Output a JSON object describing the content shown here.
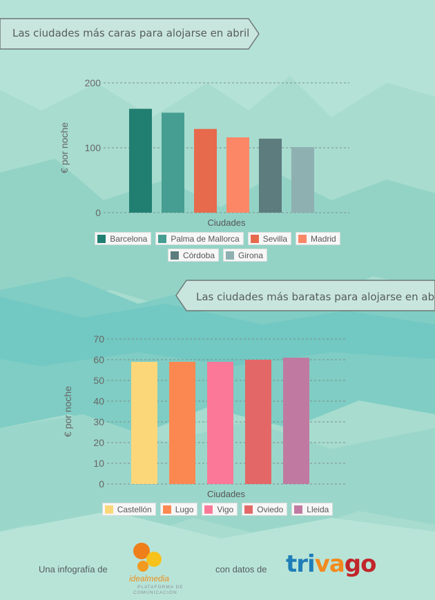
{
  "colors": {
    "bg_main": "#a9ddd0",
    "axis_text": "#666666",
    "banner_text": "#555c5c"
  },
  "charts": [
    {
      "banner": "Las ciudades más caras para alojarse en abril",
      "chart_data": {
        "type": "bar",
        "categories": [
          "Barcelona",
          "Palma de Mallorca",
          "Sevilla",
          "Madrid",
          "Córdoba",
          "Girona"
        ],
        "values": [
          160,
          154,
          129,
          116,
          114,
          101
        ],
        "colors": [
          "#217f72",
          "#459e91",
          "#e76a4c",
          "#fb8767",
          "#5c7c7e",
          "#8fb0b1"
        ],
        "xlabel": "Ciudades",
        "ylabel": "€ por noche",
        "ylim": [
          0,
          200
        ],
        "yticks": [
          0,
          100,
          200
        ],
        "grid": true,
        "legend": "bottom"
      }
    },
    {
      "banner": "Las ciudades más baratas para alojarse en abril",
      "chart_data": {
        "type": "bar",
        "categories": [
          "Castellón",
          "Lugo",
          "Vigo",
          "Oviedo",
          "Lleida"
        ],
        "values": [
          59,
          59,
          59,
          60,
          61
        ],
        "colors": [
          "#fbd77a",
          "#fc8851",
          "#fc7898",
          "#e36767",
          "#c07aa1"
        ],
        "xlabel": "Ciudades",
        "ylabel": "€ por noche",
        "ylim": [
          0,
          70
        ],
        "yticks": [
          0,
          10,
          20,
          30,
          40,
          50,
          60,
          70
        ],
        "grid": true,
        "legend": "bottom"
      }
    }
  ],
  "footer": {
    "left_text": "Una infografía de",
    "brand1": {
      "name": "idealmedia",
      "tagline1": "PLATAFORMA DE",
      "tagline2": "COMUNICACIÓN"
    },
    "mid_text": "con datos de",
    "brand2": {
      "name_part1": "tri",
      "name_part2": "va",
      "name_part3": "go"
    }
  }
}
